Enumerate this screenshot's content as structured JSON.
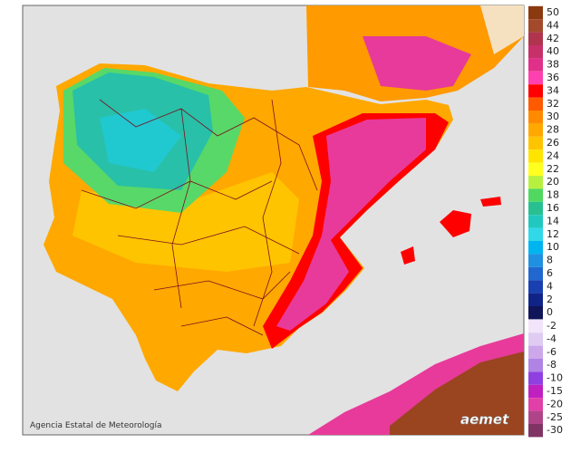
{
  "credit": "Agencia Estatal de Meteorología",
  "logo": "aemet",
  "legend": {
    "positive": [
      {
        "label": "50",
        "color": "#8b3a0f"
      },
      {
        "label": "44",
        "color": "#a24a2a"
      },
      {
        "label": "42",
        "color": "#b0344e"
      },
      {
        "label": "40",
        "color": "#c8306a"
      },
      {
        "label": "38",
        "color": "#e0308a"
      },
      {
        "label": "36",
        "color": "#ff40b0"
      },
      {
        "label": "34",
        "color": "#ff0000"
      },
      {
        "label": "32",
        "color": "#ff5a00"
      },
      {
        "label": "30",
        "color": "#ff8a00"
      },
      {
        "label": "28",
        "color": "#ffa800"
      },
      {
        "label": "26",
        "color": "#ffc400"
      },
      {
        "label": "24",
        "color": "#ffe400"
      },
      {
        "label": "22",
        "color": "#ffff20"
      },
      {
        "label": "20",
        "color": "#b8f040"
      },
      {
        "label": "18",
        "color": "#50d860"
      },
      {
        "label": "16",
        "color": "#28c090"
      },
      {
        "label": "14",
        "color": "#20c8c0"
      },
      {
        "label": "12",
        "color": "#30d8e8"
      },
      {
        "label": "10",
        "color": "#00b4f0"
      },
      {
        "label": "8",
        "color": "#2090e0"
      },
      {
        "label": "6",
        "color": "#2068d0"
      },
      {
        "label": "4",
        "color": "#1840b0"
      },
      {
        "label": "2",
        "color": "#102488"
      },
      {
        "label": "0",
        "color": "#101458"
      }
    ],
    "negative": [
      {
        "label": "-2",
        "color": "#f2e4fa"
      },
      {
        "label": "-4",
        "color": "#e0ccf2"
      },
      {
        "label": "-6",
        "color": "#cca8ea"
      },
      {
        "label": "-8",
        "color": "#b084e4"
      },
      {
        "label": "-10",
        "color": "#9040e0"
      },
      {
        "label": "-15",
        "color": "#c020c0"
      },
      {
        "label": "-20",
        "color": "#e040a8"
      },
      {
        "label": "-25",
        "color": "#b04488"
      },
      {
        "label": "-30",
        "color": "#803464"
      }
    ]
  }
}
